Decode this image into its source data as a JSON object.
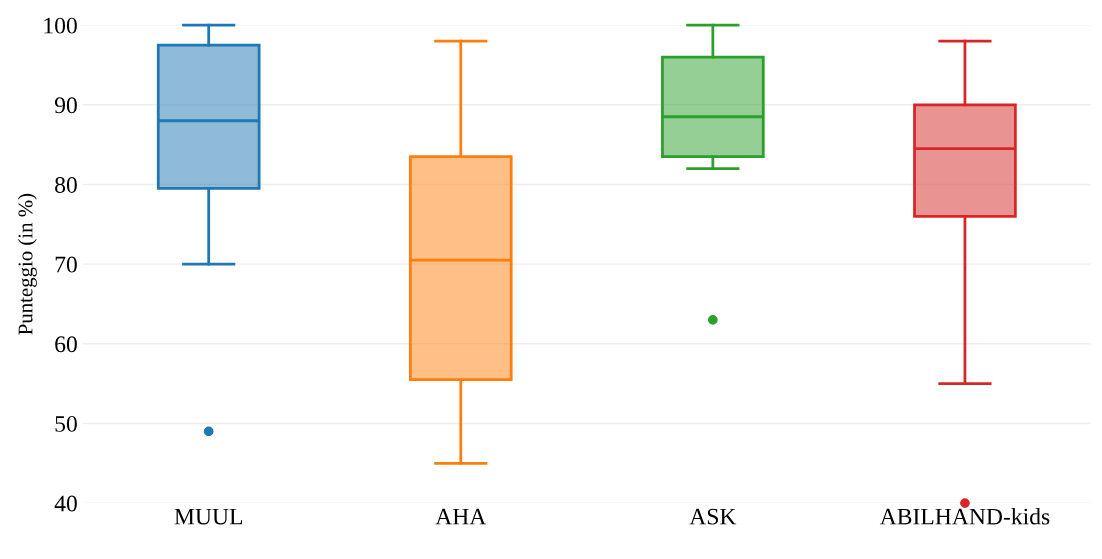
{
  "chart_data": {
    "type": "box",
    "ylabel": "Punteggio (in %)",
    "categories": [
      "MUUL",
      "AHA",
      "ASK",
      "ABILHAND-kids"
    ],
    "colors": [
      "#1f77b4",
      "#ff7f0e",
      "#2ca02c",
      "#d62728"
    ],
    "boxes": [
      {
        "low": 70,
        "q1": 79.5,
        "median": 88,
        "q3": 97.5,
        "high": 100,
        "outliers": [
          49
        ]
      },
      {
        "low": 45,
        "q1": 55.5,
        "median": 70.5,
        "q3": 83.5,
        "high": 98
      },
      {
        "low": 82,
        "q1": 83.5,
        "median": 88.5,
        "q3": 96,
        "high": 100,
        "outliers": [
          63
        ]
      },
      {
        "low": 55,
        "q1": 76,
        "median": 84.5,
        "q3": 90,
        "high": 98,
        "outliers": [
          40
        ]
      }
    ],
    "ylim": [
      40,
      100
    ],
    "yticks": [
      40,
      50,
      60,
      70,
      80,
      90,
      100
    ],
    "grid": "y"
  }
}
